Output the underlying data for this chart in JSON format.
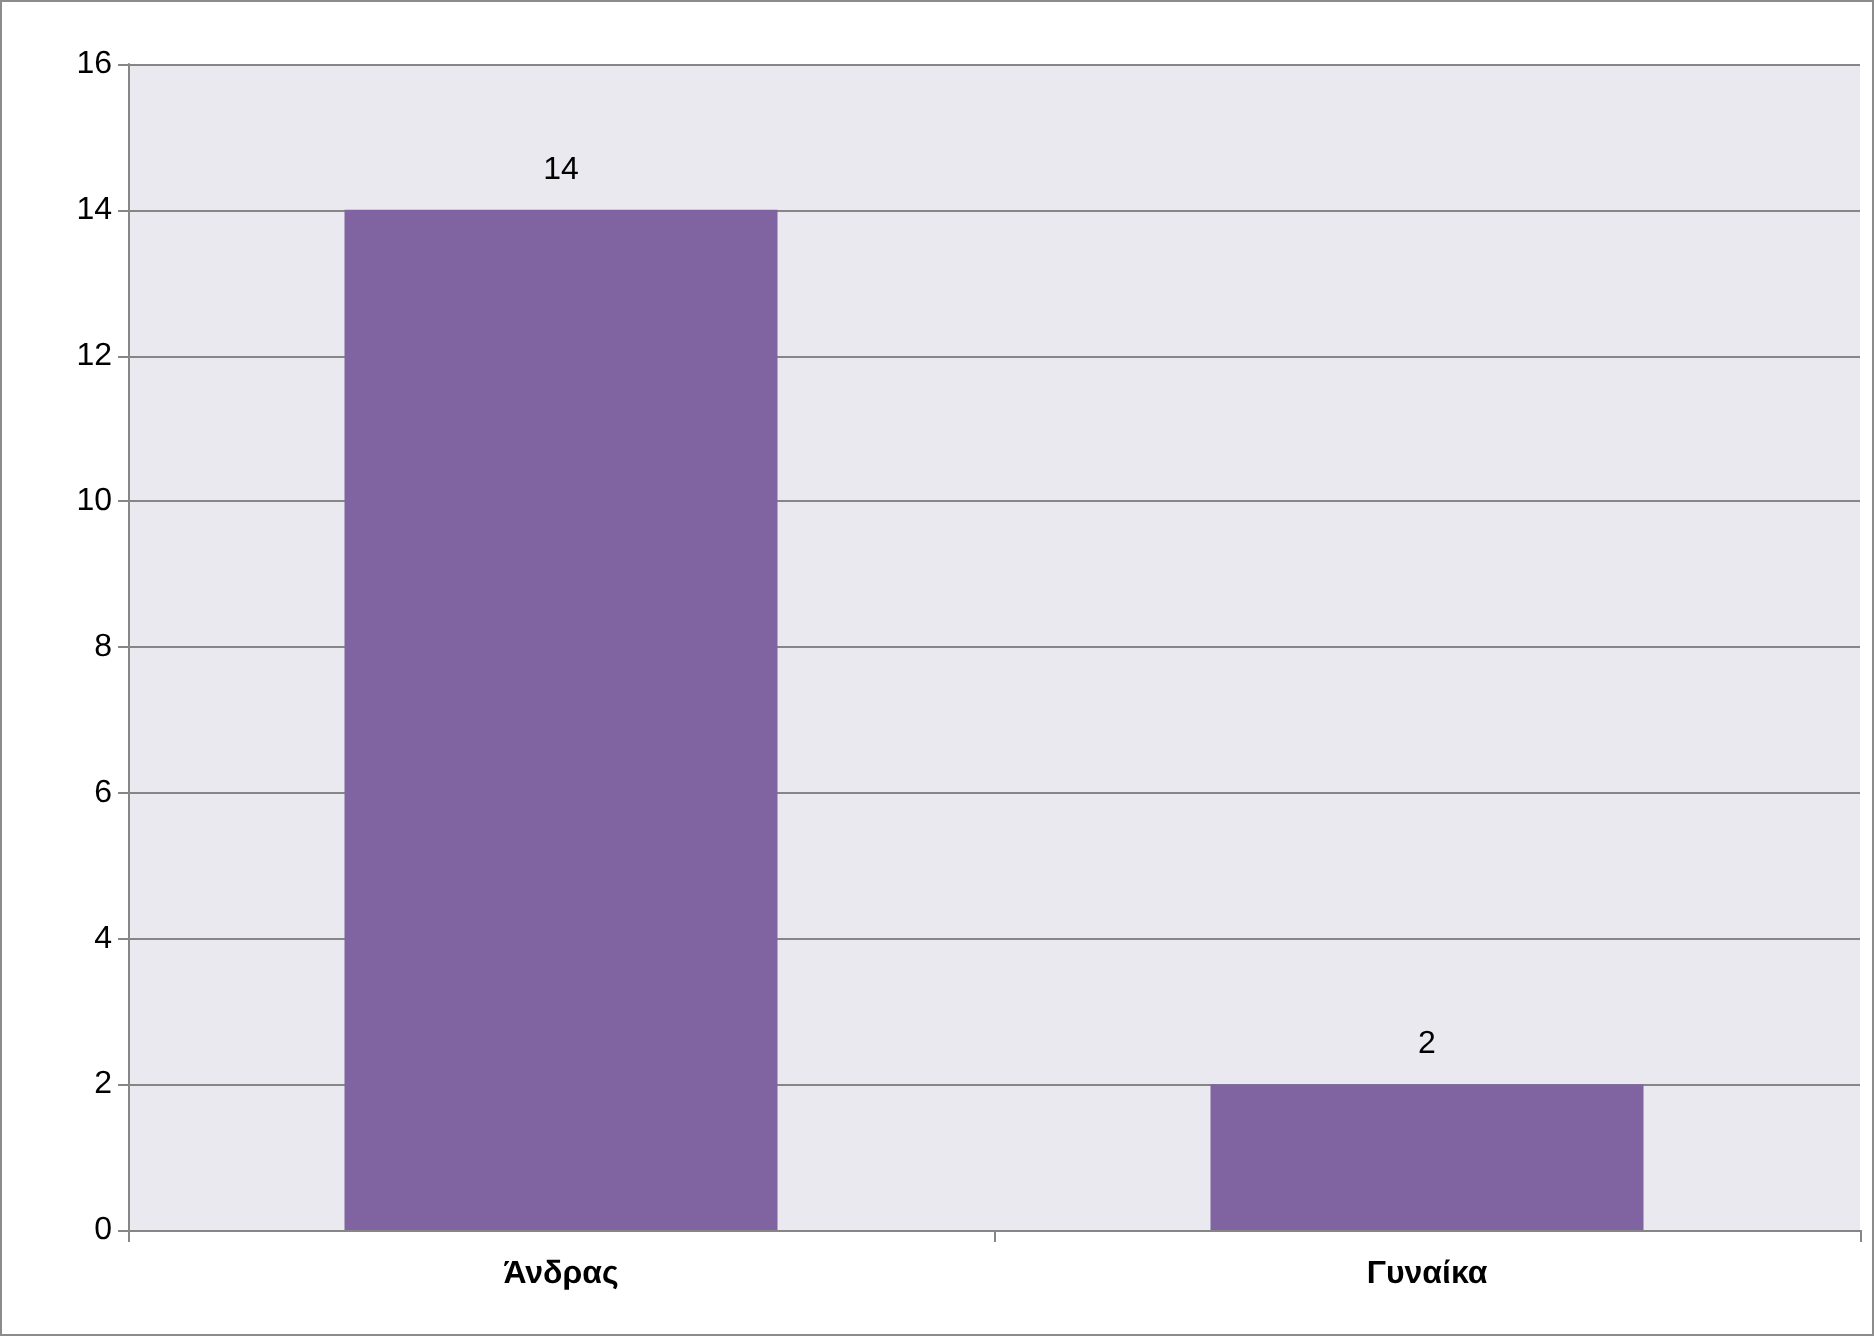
{
  "chart_data": {
    "type": "bar",
    "categories": [
      "Άνδρας",
      "Γυναίκα"
    ],
    "values": [
      14,
      2
    ],
    "color": "#8064a2",
    "ylim": [
      0,
      16
    ],
    "yticks": [
      0,
      2,
      4,
      6,
      8,
      10,
      12,
      14,
      16
    ],
    "grid": "y",
    "data_labels": true
  }
}
